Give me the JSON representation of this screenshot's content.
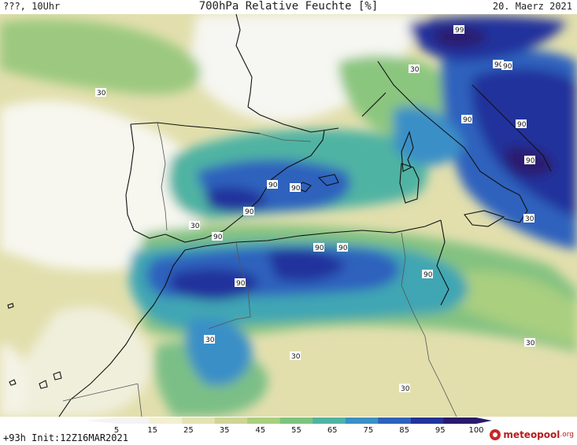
{
  "header": {
    "left_text": "???, 10Uhr",
    "title": "700hPa Relative Feuchte [%]",
    "date": "20. Maerz 2021"
  },
  "footer": {
    "init_text": "+93h  Init:12Z16MAR2021",
    "brand_main": "meteopool",
    "brand_suffix": ".org"
  },
  "legend": {
    "ticks": [
      "5",
      "15",
      "25",
      "35",
      "45",
      "55",
      "65",
      "75",
      "85",
      "95",
      "100"
    ],
    "colors": [
      "#f4f4f4",
      "#f2f0d2",
      "#e6e2b4",
      "#cfd596",
      "#a9cf7f",
      "#7cc37e",
      "#4fb3a3",
      "#3b8fc7",
      "#2d62bd",
      "#23339c",
      "#2a1a6e"
    ]
  },
  "map": {
    "contour_labels": [
      "99",
      "90",
      "90",
      "30",
      "30",
      "90",
      "90",
      "90",
      "90",
      "90",
      "90",
      "30",
      "90",
      "90",
      "90",
      "90",
      "90",
      "30",
      "30",
      "30",
      "30",
      "30"
    ]
  }
}
